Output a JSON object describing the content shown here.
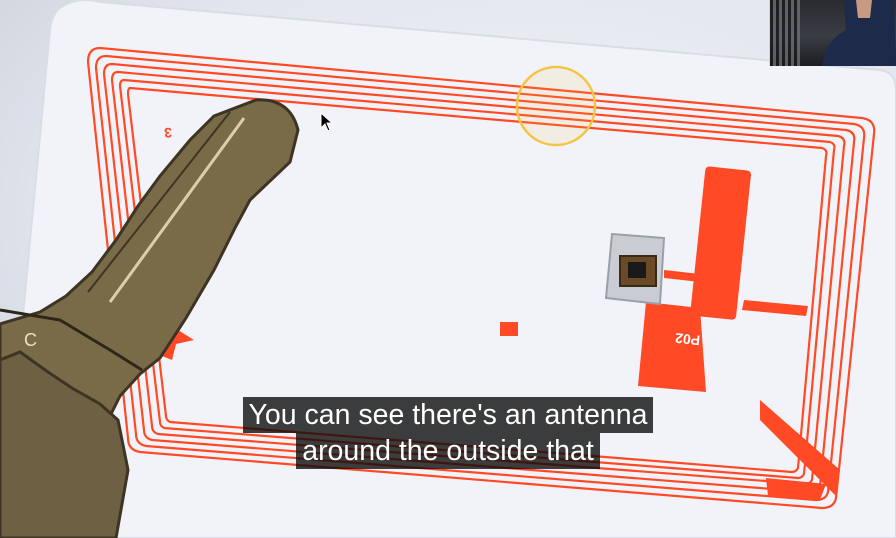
{
  "video": {
    "description_icons": [
      "rfid-card-icon",
      "key-icon",
      "chip-icon",
      "cursor-icon",
      "webcam-overlay-icon"
    ],
    "card_print_code": "P02",
    "card_edge_mark": "3",
    "key_mark": "C",
    "highlight_color": "#f4c542",
    "trace_color": "#ff4a25"
  },
  "captions": {
    "line1": "You can see there's an antenna",
    "line2": "around the outside that"
  }
}
